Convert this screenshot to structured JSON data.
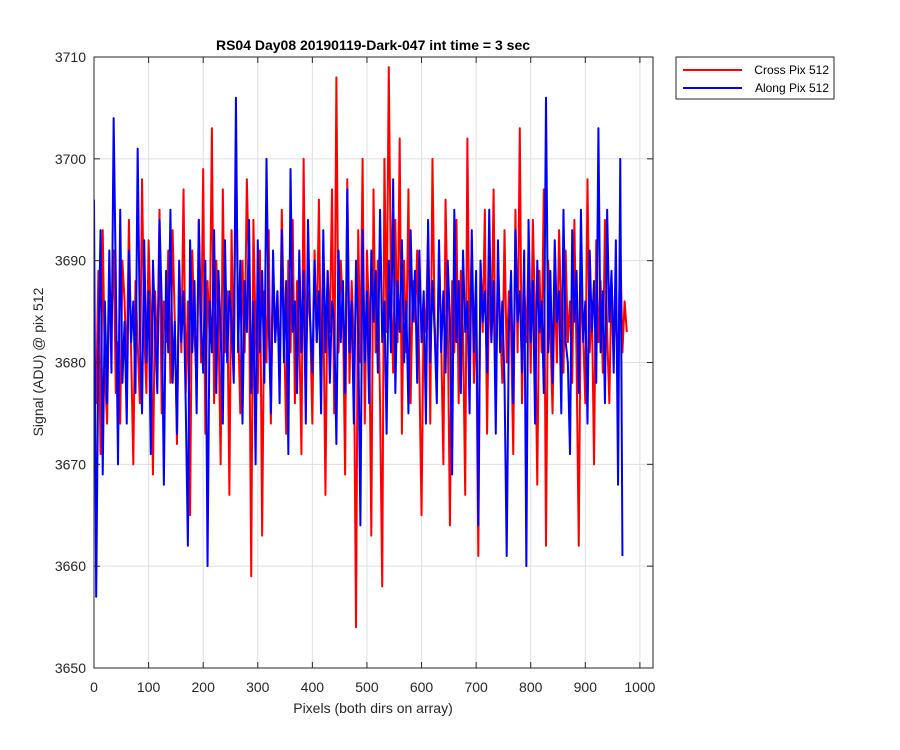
{
  "chart_data": {
    "type": "line",
    "title": "RS04 Day08 20190119-Dark-047 int time = 3 sec",
    "xlabel": "Pixels (both dirs on array)",
    "ylabel": "Signal (ADU) @ pix 512",
    "xlim": [
      0,
      1024
    ],
    "ylim": [
      3650,
      3710
    ],
    "xticks": [
      0,
      100,
      200,
      300,
      400,
      500,
      600,
      700,
      800,
      900,
      1000
    ],
    "yticks": [
      3650,
      3660,
      3670,
      3680,
      3690,
      3700,
      3710
    ],
    "grid": true,
    "legend_position": "outside-top-right",
    "x_step": 4,
    "series": [
      {
        "name": "Cross Pix 512",
        "color": "#ff0000",
        "values": [
          3682,
          3676,
          3689,
          3671,
          3693,
          3679,
          3674,
          3688,
          3684,
          3691,
          3677,
          3682,
          3674,
          3690,
          3686,
          3679,
          3694,
          3681,
          3670,
          3688,
          3682,
          3676,
          3698,
          3683,
          3677,
          3692,
          3684,
          3669,
          3687,
          3680,
          3695,
          3675,
          3686,
          3682,
          3691,
          3678,
          3693,
          3684,
          3672,
          3689,
          3681,
          3697,
          3677,
          3686,
          3665,
          3691,
          3683,
          3678,
          3694,
          3680,
          3699,
          3673,
          3688,
          3682,
          3703,
          3676,
          3690,
          3684,
          3670,
          3697,
          3681,
          3687,
          3667,
          3693,
          3679,
          3702,
          3684,
          3675,
          3690,
          3681,
          3698,
          3688,
          3659,
          3694,
          3683,
          3677,
          3691,
          3663,
          3687,
          3680,
          3693,
          3674,
          3689,
          3682,
          3687,
          3678,
          3695,
          3684,
          3673,
          3690,
          3681,
          3694,
          3676,
          3688,
          3683,
          3671,
          3700,
          3679,
          3687,
          3684,
          3674,
          3691,
          3682,
          3696,
          3679,
          3686,
          3667,
          3689,
          3683,
          3697,
          3675,
          3708,
          3681,
          3690,
          3685,
          3669,
          3698,
          3678,
          3688,
          3682,
          3654,
          3693,
          3680,
          3700,
          3674,
          3691,
          3684,
          3663,
          3697,
          3681,
          3690,
          3676,
          3658,
          3700,
          3683,
          3709,
          3687,
          3679,
          3694,
          3682,
          3702,
          3673,
          3690,
          3681,
          3697,
          3676,
          3688,
          3684,
          3691,
          3679,
          3665,
          3686,
          3683,
          3693,
          3674,
          3700,
          3684,
          3678,
          3691,
          3682,
          3670,
          3696,
          3684,
          3664,
          3688,
          3681,
          3694,
          3676,
          3689,
          3683,
          3667,
          3702,
          3680,
          3692,
          3678,
          3686,
          3661,
          3690,
          3683,
          3695,
          3673,
          3688,
          3682,
          3697,
          3676,
          3690,
          3684,
          3678,
          3693,
          3680,
          3687,
          3683,
          3671,
          3695,
          3681,
          3703,
          3676,
          3688,
          3682,
          3691,
          3679,
          3694,
          3684,
          3668,
          3689,
          3681,
          3697,
          3662,
          3690,
          3683,
          3675,
          3688,
          3680,
          3693,
          3684,
          3679,
          3691,
          3682,
          3686,
          3678,
          3694,
          3680,
          3662,
          3689,
          3683,
          3676,
          3698,
          3681,
          3686,
          3670,
          3692,
          3682,
          3688,
          3679,
          3694,
          3683,
          3676,
          3688,
          3682,
          3685,
          3679,
          3692,
          3681,
          3686,
          3683
        ]
      },
      {
        "name": "Along Pix 512",
        "color": "#0000ff",
        "values": [
          3696,
          3657,
          3681,
          3693,
          3669,
          3686,
          3676,
          3691,
          3679,
          3704,
          3688,
          3670,
          3695,
          3678,
          3684,
          3674,
          3691,
          3682,
          3686,
          3677,
          3701,
          3683,
          3675,
          3692,
          3680,
          3687,
          3671,
          3690,
          3683,
          3677,
          3694,
          3686,
          3668,
          3689,
          3681,
          3695,
          3678,
          3684,
          3673,
          3690,
          3682,
          3687,
          3676,
          3662,
          3692,
          3681,
          3688,
          3675,
          3694,
          3684,
          3679,
          3690,
          3660,
          3686,
          3681,
          3693,
          3677,
          3689,
          3683,
          3674,
          3692,
          3680,
          3687,
          3684,
          3678,
          3706,
          3681,
          3690,
          3674,
          3688,
          3683,
          3694,
          3677,
          3686,
          3670,
          3692,
          3681,
          3689,
          3678,
          3700,
          3684,
          3675,
          3691,
          3682,
          3687,
          3676,
          3693,
          3680,
          3688,
          3671,
          3699,
          3683,
          3686,
          3677,
          3691,
          3681,
          3689,
          3674,
          3694,
          3684,
          3679,
          3690,
          3682,
          3687,
          3675,
          3693,
          3681,
          3689,
          3678,
          3686,
          3684,
          3672,
          3691,
          3682,
          3688,
          3677,
          3697,
          3681,
          3686,
          3674,
          3690,
          3683,
          3664,
          3693,
          3680,
          3687,
          3676,
          3691,
          3684,
          3689,
          3679,
          3695,
          3682,
          3686,
          3673,
          3690,
          3681,
          3698,
          3677,
          3688,
          3683,
          3692,
          3680,
          3686,
          3675,
          3693,
          3684,
          3689,
          3678,
          3691,
          3682,
          3687,
          3674,
          3694,
          3680,
          3688,
          3683,
          3676,
          3692,
          3681,
          3687,
          3679,
          3690,
          3684,
          3669,
          3695,
          3682,
          3688,
          3677,
          3691,
          3683,
          3686,
          3675,
          3693,
          3681,
          3689,
          3664,
          3690,
          3684,
          3687,
          3679,
          3695,
          3682,
          3688,
          3673,
          3692,
          3681,
          3686,
          3678,
          3661,
          3683,
          3689,
          3676,
          3693,
          3684,
          3687,
          3679,
          3691,
          3660,
          3694,
          3682,
          3688,
          3674,
          3690,
          3683,
          3686,
          3677,
          3706,
          3681,
          3689,
          3678,
          3692,
          3684,
          3687,
          3675,
          3695,
          3682,
          3680,
          3671,
          3693,
          3684,
          3689,
          3677,
          3695,
          3682,
          3686,
          3674,
          3691,
          3683,
          3688,
          3678,
          3703,
          3681,
          3687,
          3676,
          3695,
          3684,
          3689,
          3679,
          3692,
          3668,
          3700,
          3661
        ]
      }
    ]
  }
}
